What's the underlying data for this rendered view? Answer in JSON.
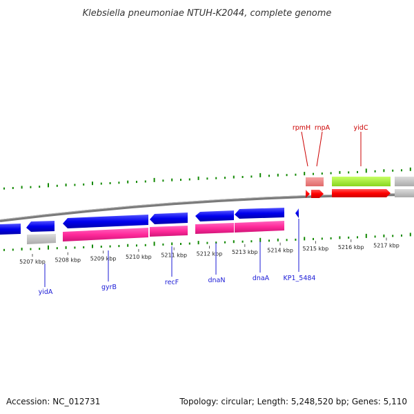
{
  "title": "Klebsiella pneumoniae NTUH-K2044, complete genome",
  "footer": {
    "accession": "Accession: NC_012731",
    "summary": "Topology: circular; Length: 5,248,520 bp; Genes: 5,110"
  },
  "colors": {
    "backbone": "#888888",
    "forward_cds": "#ff0000",
    "forward_cds_light": "#f08080",
    "forward_rna": "#aaee33",
    "reverse_cds": "#0000ee",
    "reverse_gene": "#ff2a9a",
    "other_gene": "#bbbbbb",
    "gc_tick": "#118800",
    "label_forward": "#cc0000",
    "label_reverse": "#1a1ad6"
  },
  "scale_labels": [
    "5207 kbp",
    "5208 kbp",
    "5209 kbp",
    "5210 kbp",
    "5211 kbp",
    "5212 kbp",
    "5213 kbp",
    "5214 kbp",
    "5215 kbp",
    "5216 kbp",
    "5217 kbp"
  ],
  "genes_forward": [
    "rpmH",
    "rnpA",
    "yidC"
  ],
  "genes_reverse": [
    "yidA",
    "gyrB",
    "recF",
    "dnaN",
    "dnaA",
    "KP1_5484"
  ]
}
